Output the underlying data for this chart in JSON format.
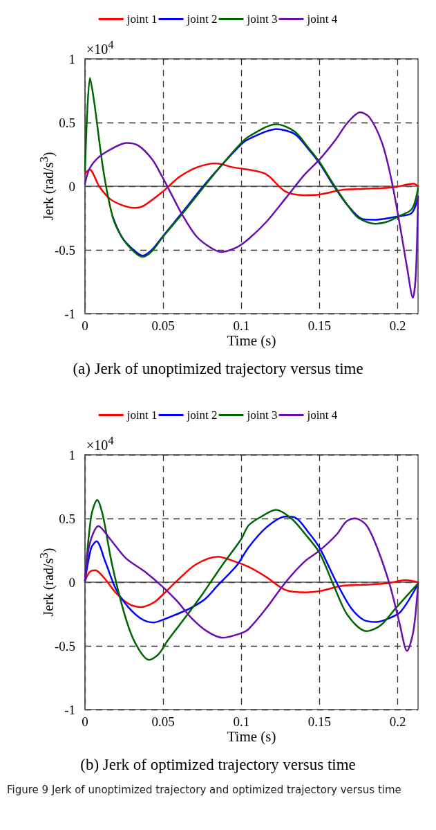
{
  "chart_data": [
    {
      "type": "line",
      "title": "(a) Jerk of unoptimized trajectory versus time",
      "xlabel": "Time (s)",
      "ylabel": "Jerk (rad/s$^{3}$)",
      "annotations": [
        "×10$^{4}$"
      ],
      "xlim": [
        0,
        0.213
      ],
      "ylim": [
        -1,
        1
      ],
      "xticks": [
        0,
        0.05,
        0.1,
        0.15,
        0.2
      ],
      "yticks": [
        -1,
        -0.5,
        0,
        0.5,
        1
      ],
      "grid": true,
      "legend": "top",
      "marker": "none",
      "line_style": "solid",
      "series": [
        {
          "name": "joint 1",
          "color": "#ff0000",
          "x": [
            0,
            0.003,
            0.009,
            0.016,
            0.024,
            0.032,
            0.038,
            0.05,
            0.06,
            0.072,
            0.084,
            0.094,
            0.115,
            0.128,
            0.14,
            0.15,
            0.164,
            0.178,
            0.19,
            0.199,
            0.21,
            0.213
          ],
          "values": [
            0.1,
            0.13,
            0,
            -0.1,
            -0.15,
            -0.17,
            -0.15,
            -0.04,
            0.07,
            0.15,
            0.18,
            0.15,
            0.1,
            -0.04,
            -0.07,
            -0.065,
            -0.03,
            -0.02,
            -0.015,
            -0.005,
            0.02,
            0
          ]
        },
        {
          "name": "joint 2",
          "color": "#0000ff",
          "x": [
            0.0177,
            0.0236,
            0.031,
            0.0369,
            0.0428,
            0.05,
            0.062,
            0.075,
            0.087,
            0.1,
            0.1047,
            0.1224,
            0.134,
            0.143,
            0.15,
            0.159,
            0.168,
            0.178,
            0.186,
            0.2,
            0.209,
            0.213
          ],
          "values": [
            -0.24,
            -0.4,
            -0.5,
            -0.545,
            -0.5,
            -0.39,
            -0.21,
            -0.01,
            0.16,
            0.33,
            0.37,
            0.448,
            0.41,
            0.29,
            0.18,
            0.005,
            -0.15,
            -0.26,
            -0.263,
            -0.237,
            -0.21,
            -0.08
          ]
        },
        {
          "name": "joint 3",
          "color": "#006400",
          "x": [
            0,
            0.0032,
            0.0059,
            0.0118,
            0.0177,
            0.0236,
            0.031,
            0.0369,
            0.0428,
            0.05,
            0.062,
            0.075,
            0.087,
            0.1,
            0.1047,
            0.1224,
            0.134,
            0.143,
            0.15,
            0.159,
            0.168,
            0.175,
            0.186,
            0.193,
            0.2,
            0.209,
            0.213
          ],
          "values": [
            0.12,
            0.85,
            0.66,
            0.12,
            -0.24,
            -0.4,
            -0.51,
            -0.555,
            -0.51,
            -0.395,
            -0.22,
            -0.02,
            0.16,
            0.34,
            0.39,
            0.487,
            0.43,
            0.3,
            0.19,
            0.013,
            -0.15,
            -0.25,
            -0.295,
            -0.28,
            -0.24,
            -0.18,
            -0.015
          ]
        },
        {
          "name": "joint 4",
          "color": "#6a0dad",
          "x": [
            0,
            0.003,
            0.009,
            0.018,
            0.0265,
            0.034,
            0.043,
            0.05,
            0.056,
            0.062,
            0.071,
            0.08,
            0.087,
            0.097,
            0.105,
            0.116,
            0.128,
            0.14,
            0.15,
            0.16,
            0.168,
            0.176,
            0.182,
            0.19,
            0.196,
            0.202,
            0.206,
            0.2097,
            0.2116,
            0.213
          ],
          "values": [
            0.02,
            0.14,
            0.23,
            0.3,
            0.34,
            0.32,
            0.21,
            0.06,
            -0.08,
            -0.22,
            -0.39,
            -0.48,
            -0.516,
            -0.48,
            -0.41,
            -0.28,
            -0.1,
            0.085,
            0.21,
            0.36,
            0.5,
            0.58,
            0.54,
            0.34,
            0.05,
            -0.35,
            -0.64,
            -0.875,
            -0.69,
            -0.08
          ]
        }
      ]
    },
    {
      "type": "line",
      "title": "(b) Jerk of optimized trajectory versus time",
      "xlabel": "Time (s)",
      "ylabel": "Jerk (rad/s$^{3}$)",
      "annotations": [
        "×10$^{4}$",
        "Figure 9  Jerk of unoptimized trajectory and optimized trajectory versus time"
      ],
      "xlim": [
        0,
        0.213
      ],
      "ylim": [
        -1,
        1
      ],
      "xticks": [
        0,
        0.05,
        0.1,
        0.15,
        0.2
      ],
      "yticks": [
        -1,
        -0.5,
        0,
        0.5,
        1
      ],
      "grid": true,
      "legend": "top",
      "marker": "none",
      "line_style": "solid",
      "series": [
        {
          "name": "joint 1",
          "color": "#ff0000",
          "x": [
            0,
            0.003,
            0.0066,
            0.0118,
            0.02,
            0.028,
            0.036,
            0.044,
            0.05,
            0.059,
            0.071,
            0.085,
            0.097,
            0.1047,
            0.116,
            0.128,
            0.141,
            0.15,
            0.164,
            0.178,
            0.193,
            0.205,
            0.213
          ],
          "values": [
            0.01,
            0.08,
            0.094,
            0.04,
            -0.087,
            -0.17,
            -0.195,
            -0.16,
            -0.095,
            0.013,
            0.14,
            0.2,
            0.157,
            0.12,
            0.04,
            -0.06,
            -0.08,
            -0.07,
            -0.03,
            -0.02,
            -0.01,
            0.016,
            0
          ]
        },
        {
          "name": "joint 2",
          "color": "#0000ff",
          "x": [
            0,
            0.004,
            0.0074,
            0.013,
            0.02,
            0.028,
            0.037,
            0.044,
            0.05,
            0.059,
            0.068,
            0.077,
            0.085,
            0.097,
            0.1047,
            0.116,
            0.128,
            0.134,
            0.143,
            0.15,
            0.161,
            0.17,
            0.178,
            0.186,
            0.194,
            0.202,
            0.213
          ],
          "values": [
            0.01,
            0.27,
            0.32,
            0.16,
            -0.06,
            -0.2,
            -0.295,
            -0.316,
            -0.295,
            -0.25,
            -0.2,
            -0.13,
            -0.024,
            0.13,
            0.275,
            0.43,
            0.515,
            0.51,
            0.39,
            0.27,
            -0.005,
            -0.2,
            -0.295,
            -0.313,
            -0.286,
            -0.23,
            -0.015
          ]
        },
        {
          "name": "joint 3",
          "color": "#006400",
          "x": [
            0,
            0.004,
            0.0078,
            0.0115,
            0.017,
            0.025,
            0.032,
            0.041,
            0.047,
            0.053,
            0.063,
            0.075,
            0.087,
            0.1,
            0.1047,
            0.1135,
            0.122,
            0.132,
            0.141,
            0.15,
            0.159,
            0.168,
            0.18,
            0.189,
            0.199,
            0.213
          ],
          "values": [
            0.01,
            0.52,
            0.645,
            0.52,
            0.157,
            -0.24,
            -0.475,
            -0.61,
            -0.566,
            -0.457,
            -0.295,
            -0.096,
            0.12,
            0.34,
            0.447,
            0.52,
            0.568,
            0.5,
            0.375,
            0.23,
            -0.024,
            -0.26,
            -0.385,
            -0.34,
            -0.2,
            -0.01
          ]
        },
        {
          "name": "joint 4",
          "color": "#6a0dad",
          "x": [
            0,
            0.003,
            0.0086,
            0.016,
            0.026,
            0.038,
            0.05,
            0.059,
            0.068,
            0.078,
            0.088,
            0.1,
            0.1047,
            0.116,
            0.128,
            0.14,
            0.15,
            0.161,
            0.167,
            0.1726,
            0.18,
            0.187,
            0.195,
            0.201,
            0.206,
            0.21,
            0.213
          ],
          "values": [
            0.01,
            0.3,
            0.44,
            0.34,
            0.19,
            0.085,
            -0.04,
            -0.15,
            -0.28,
            -0.385,
            -0.436,
            -0.4,
            -0.367,
            -0.204,
            -0.005,
            0.157,
            0.248,
            0.375,
            0.475,
            0.502,
            0.447,
            0.266,
            -0.024,
            -0.313,
            -0.54,
            -0.386,
            -0.024
          ]
        }
      ]
    }
  ]
}
